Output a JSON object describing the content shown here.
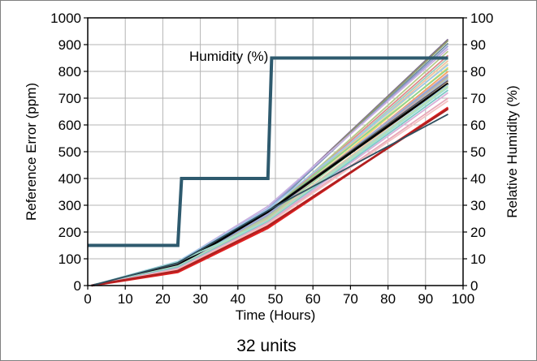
{
  "chart_data": {
    "type": "line",
    "xlabel": "Time (Hours)",
    "ylabel": "Reference Error (ppm)",
    "y2label": "Relative Humidity (%)",
    "xlim": [
      0,
      100
    ],
    "ylim": [
      0,
      1000
    ],
    "y2lim": [
      0,
      100
    ],
    "x_ticks": [
      "0",
      "10",
      "20",
      "30",
      "40",
      "50",
      "60",
      "70",
      "80",
      "90",
      "100"
    ],
    "y_ticks": [
      "0",
      "100",
      "200",
      "300",
      "400",
      "500",
      "600",
      "700",
      "800",
      "900",
      "1000"
    ],
    "y2_ticks": [
      "0",
      "10",
      "20",
      "30",
      "40",
      "50",
      "60",
      "70",
      "80",
      "90",
      "100"
    ],
    "grid": true,
    "annotation": "Humidity (%)",
    "caption": "32 units",
    "humidity_series": {
      "color": "#2e5a6e",
      "x": [
        0,
        24,
        25,
        48,
        49,
        96
      ],
      "y": [
        15,
        15,
        40,
        40,
        85,
        85
      ]
    },
    "x": [
      1,
      24,
      48,
      96
    ],
    "series": [
      {
        "color": "#7e6b8f",
        "values": [
          0,
          80,
          285,
          920
        ]
      },
      {
        "color": "#8f9a6a",
        "values": [
          0,
          82,
          282,
          915
        ]
      },
      {
        "color": "#6f8fa0",
        "values": [
          0,
          85,
          280,
          905
        ]
      },
      {
        "color": "#9b9fd6",
        "values": [
          0,
          87,
          288,
          895
        ]
      },
      {
        "color": "#c8b0e0",
        "values": [
          0,
          88,
          296,
          885
        ]
      },
      {
        "color": "#b5c98a",
        "values": [
          0,
          75,
          270,
          875
        ]
      },
      {
        "color": "#e08a8a",
        "values": [
          0,
          76,
          268,
          860
        ]
      },
      {
        "color": "#9ad0c2",
        "values": [
          0,
          72,
          262,
          850
        ]
      },
      {
        "color": "#f0c0a0",
        "values": [
          0,
          70,
          260,
          840
        ]
      },
      {
        "color": "#e8e0a0",
        "values": [
          0,
          68,
          255,
          830
        ]
      },
      {
        "color": "#a0c8e8",
        "values": [
          0,
          90,
          285,
          825
        ]
      },
      {
        "color": "#f5d76e",
        "values": [
          0,
          66,
          252,
          815
        ]
      },
      {
        "color": "#8cd48c",
        "values": [
          0,
          78,
          275,
          810
        ]
      },
      {
        "color": "#f4a460",
        "values": [
          0,
          65,
          250,
          800
        ]
      },
      {
        "color": "#c0a0d0",
        "values": [
          0,
          74,
          265,
          790
        ]
      },
      {
        "color": "#7fb3d5",
        "values": [
          0,
          72,
          262,
          785
        ]
      },
      {
        "color": "#d4a0a0",
        "values": [
          0,
          70,
          258,
          780
        ]
      },
      {
        "color": "#a8d8a8",
        "values": [
          0,
          68,
          255,
          775
        ]
      },
      {
        "color": "#b0b0e0",
        "values": [
          0,
          77,
          270,
          770
        ]
      },
      {
        "color": "#555555",
        "values": [
          0,
          80,
          278,
          765
        ]
      },
      {
        "color": "#e8c8a0",
        "values": [
          0,
          65,
          248,
          760
        ]
      },
      {
        "color": "#000000",
        "values": [
          0,
          75,
          275,
          755
        ]
      },
      {
        "color": "#9fd0e0",
        "values": [
          0,
          73,
          245,
          750
        ]
      },
      {
        "color": "#c8e0a0",
        "values": [
          0,
          71,
          242,
          745
        ]
      },
      {
        "color": "#a0e0d0",
        "values": [
          0,
          88,
          240,
          740
        ]
      },
      {
        "color": "#7ec8c8",
        "values": [
          0,
          69,
          238,
          730
        ]
      },
      {
        "color": "#d8b0d8",
        "values": [
          0,
          64,
          235,
          720
        ]
      },
      {
        "color": "#e8a8b8",
        "values": [
          0,
          62,
          232,
          700
        ]
      },
      {
        "color": "#f4c2c2",
        "values": [
          0,
          60,
          230,
          690
        ]
      },
      {
        "color": "#e02020",
        "values": [
          0,
          50,
          215,
          665
        ]
      },
      {
        "color": "#b02020",
        "values": [
          0,
          55,
          222,
          660
        ]
      },
      {
        "color": "#2f4f5f",
        "values": [
          0,
          85,
          280,
          640
        ]
      }
    ]
  }
}
